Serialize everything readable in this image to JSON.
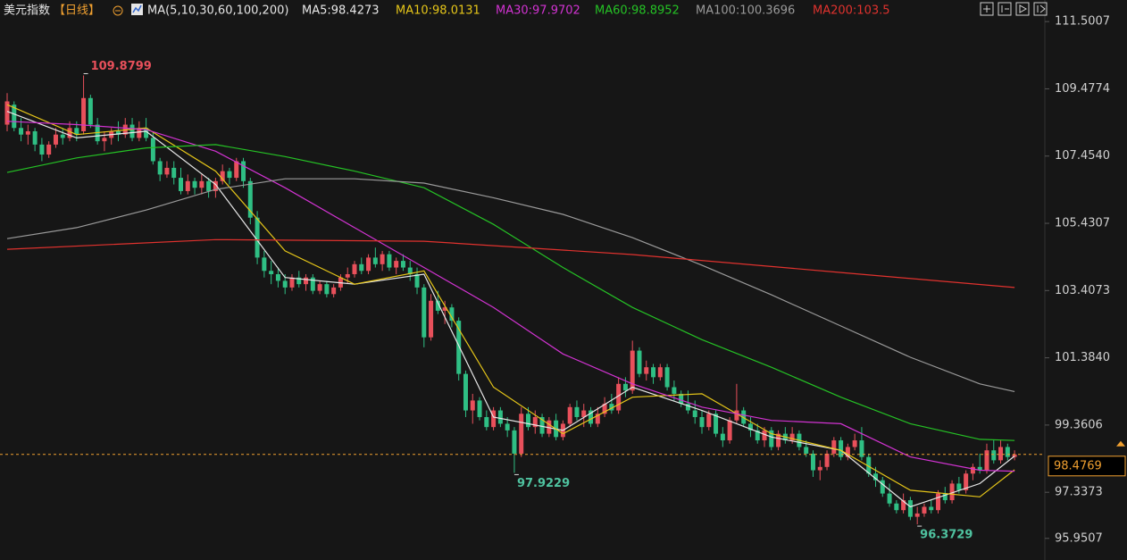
{
  "chart_data": {
    "type": "candlestick",
    "title": "美元指数",
    "period": "【日线】",
    "indicator": "MA(5,10,30,60,100,200)",
    "up_color": "#e8505b",
    "down_color": "#2fbf84",
    "ylim": [
      95.3,
      112.15
    ],
    "yticks": [
      111.5007,
      109.4774,
      {
        "value": 107.454,
        "label": "107.4540"
      },
      105.4307,
      103.4073,
      {
        "value": 101.384,
        "label": "101.3840"
      },
      99.3606,
      97.3373,
      95.9507
    ],
    "current_price": 98.4769,
    "current_price_color": "#f0a030",
    "candles": [
      [
        108.4,
        109.35,
        108.2,
        109.1
      ],
      [
        109.0,
        109.1,
        108.2,
        108.3
      ],
      [
        108.3,
        108.6,
        107.9,
        108.1
      ],
      [
        108.1,
        108.4,
        107.8,
        108.2
      ],
      [
        108.2,
        108.3,
        107.6,
        107.8
      ],
      [
        107.8,
        108.0,
        107.3,
        107.5
      ],
      [
        107.5,
        107.9,
        107.4,
        107.8
      ],
      [
        107.8,
        108.3,
        107.7,
        108.1
      ],
      [
        108.1,
        108.3,
        107.8,
        108.0
      ],
      [
        108.0,
        108.5,
        107.9,
        108.3
      ],
      [
        108.3,
        108.5,
        107.9,
        108.1
      ],
      [
        108.2,
        109.8799,
        108.1,
        109.2
      ],
      [
        109.2,
        109.3,
        108.3,
        108.4
      ],
      [
        108.4,
        108.6,
        107.8,
        107.9
      ],
      [
        107.9,
        108.2,
        107.6,
        108.0
      ],
      [
        108.0,
        108.3,
        107.8,
        108.2
      ],
      [
        108.2,
        108.5,
        107.9,
        108.1
      ],
      [
        108.1,
        108.6,
        108.0,
        108.4
      ],
      [
        108.4,
        108.6,
        107.9,
        108.0
      ],
      [
        108.0,
        108.5,
        107.9,
        108.3
      ],
      [
        108.3,
        108.6,
        107.9,
        108.0
      ],
      [
        108.0,
        108.2,
        107.2,
        107.3
      ],
      [
        107.3,
        107.4,
        106.7,
        106.9
      ],
      [
        106.9,
        107.3,
        106.8,
        107.1
      ],
      [
        107.1,
        107.3,
        106.6,
        106.8
      ],
      [
        106.8,
        107.1,
        106.3,
        106.4
      ],
      [
        106.4,
        106.9,
        106.3,
        106.7
      ],
      [
        106.7,
        106.8,
        106.3,
        106.5
      ],
      [
        106.5,
        106.9,
        106.3,
        106.7
      ],
      [
        106.7,
        106.8,
        106.2,
        106.4
      ],
      [
        106.4,
        106.8,
        106.2,
        106.7
      ],
      [
        106.7,
        107.2,
        106.6,
        107.0
      ],
      [
        107.0,
        107.1,
        106.6,
        106.8
      ],
      [
        106.8,
        107.4,
        106.7,
        107.3
      ],
      [
        107.3,
        107.4,
        106.5,
        106.7
      ],
      [
        106.7,
        106.8,
        105.4,
        105.6
      ],
      [
        105.6,
        105.8,
        104.2,
        104.4
      ],
      [
        104.4,
        104.6,
        103.8,
        104.0
      ],
      [
        104.0,
        104.3,
        103.6,
        103.9
      ],
      [
        103.9,
        104.1,
        103.5,
        103.7
      ],
      [
        103.7,
        103.9,
        103.3,
        103.5
      ],
      [
        103.5,
        103.9,
        103.4,
        103.8
      ],
      [
        103.8,
        104.0,
        103.5,
        103.6
      ],
      [
        103.6,
        103.9,
        103.4,
        103.8
      ],
      [
        103.8,
        103.9,
        103.3,
        103.4
      ],
      [
        103.4,
        103.7,
        103.3,
        103.6
      ],
      [
        103.6,
        103.7,
        103.2,
        103.3
      ],
      [
        103.3,
        103.6,
        103.2,
        103.5
      ],
      [
        103.5,
        103.9,
        103.4,
        103.8
      ],
      [
        103.8,
        104.1,
        103.6,
        103.9
      ],
      [
        103.9,
        104.3,
        103.8,
        104.2
      ],
      [
        104.2,
        104.4,
        103.9,
        104.0
      ],
      [
        104.0,
        104.5,
        103.9,
        104.4
      ],
      [
        104.4,
        104.7,
        104.1,
        104.2
      ],
      [
        104.2,
        104.6,
        104.0,
        104.5
      ],
      [
        104.5,
        104.6,
        104.0,
        104.1
      ],
      [
        104.1,
        104.4,
        103.9,
        104.3
      ],
      [
        104.3,
        104.5,
        104.0,
        104.1
      ],
      [
        104.1,
        104.3,
        103.7,
        103.9
      ],
      [
        103.9,
        104.1,
        103.3,
        103.5
      ],
      [
        103.5,
        103.6,
        101.7,
        102.0
      ],
      [
        102.0,
        103.3,
        101.9,
        103.1
      ],
      [
        103.1,
        103.4,
        102.7,
        102.8
      ],
      [
        102.8,
        103.1,
        102.4,
        102.9
      ],
      [
        102.9,
        103.0,
        102.3,
        102.5
      ],
      [
        102.5,
        102.6,
        100.7,
        100.9
      ],
      [
        100.9,
        101.0,
        99.6,
        99.8
      ],
      [
        99.8,
        100.3,
        99.4,
        100.1
      ],
      [
        100.1,
        100.2,
        99.5,
        99.6
      ],
      [
        99.6,
        99.8,
        99.2,
        99.3
      ],
      [
        99.3,
        99.9,
        99.2,
        99.8
      ],
      [
        99.8,
        99.9,
        99.3,
        99.4
      ],
      [
        99.4,
        99.6,
        99.0,
        99.2
      ],
      [
        99.2,
        99.3,
        97.9229,
        98.5
      ],
      [
        98.5,
        99.9,
        98.4,
        99.7
      ],
      [
        99.7,
        99.9,
        99.2,
        99.3
      ],
      [
        99.3,
        99.8,
        99.1,
        99.6
      ],
      [
        99.6,
        99.7,
        99.0,
        99.1
      ],
      [
        99.1,
        99.6,
        99.0,
        99.5
      ],
      [
        99.5,
        99.7,
        98.9,
        99.0
      ],
      [
        99.0,
        99.5,
        98.9,
        99.4
      ],
      [
        99.4,
        100.0,
        99.3,
        99.9
      ],
      [
        99.9,
        100.1,
        99.5,
        99.6
      ],
      [
        99.6,
        100.0,
        99.3,
        99.8
      ],
      [
        99.8,
        99.9,
        99.3,
        99.4
      ],
      [
        99.4,
        99.9,
        99.3,
        99.7
      ],
      [
        99.7,
        100.2,
        99.6,
        100.0
      ],
      [
        100.0,
        100.3,
        99.7,
        99.8
      ],
      [
        99.8,
        100.8,
        99.7,
        100.6
      ],
      [
        100.6,
        100.8,
        100.2,
        100.4
      ],
      [
        100.4,
        101.9,
        100.3,
        101.6
      ],
      [
        101.6,
        101.7,
        100.8,
        100.9
      ],
      [
        100.9,
        101.3,
        100.7,
        101.1
      ],
      [
        101.1,
        101.2,
        100.6,
        100.8
      ],
      [
        100.8,
        101.2,
        100.7,
        101.1
      ],
      [
        101.1,
        101.2,
        100.4,
        100.5
      ],
      [
        100.5,
        100.7,
        100.1,
        100.3
      ],
      [
        100.3,
        100.4,
        99.9,
        100.0
      ],
      [
        100.0,
        100.4,
        99.7,
        99.8
      ],
      [
        99.8,
        100.1,
        99.4,
        99.6
      ],
      [
        99.6,
        99.8,
        99.1,
        99.3
      ],
      [
        99.3,
        99.8,
        99.2,
        99.7
      ],
      [
        99.7,
        99.8,
        99.0,
        99.1
      ],
      [
        99.1,
        99.3,
        98.7,
        98.9
      ],
      [
        98.9,
        99.6,
        98.8,
        99.5
      ],
      [
        99.5,
        100.6,
        99.4,
        99.8
      ],
      [
        99.8,
        99.9,
        99.3,
        99.4
      ],
      [
        99.4,
        99.6,
        99.0,
        99.2
      ],
      [
        99.2,
        99.4,
        98.8,
        98.9
      ],
      [
        98.9,
        99.3,
        98.7,
        99.2
      ],
      [
        99.2,
        99.3,
        98.6,
        98.7
      ],
      [
        98.7,
        99.2,
        98.6,
        99.1
      ],
      [
        99.1,
        99.3,
        98.8,
        98.9
      ],
      [
        98.9,
        99.3,
        98.8,
        99.1
      ],
      [
        99.1,
        99.2,
        98.6,
        98.7
      ],
      [
        98.7,
        98.9,
        98.4,
        98.5
      ],
      [
        98.5,
        98.6,
        97.8,
        98.0
      ],
      [
        98.0,
        98.3,
        97.7,
        98.1
      ],
      [
        98.1,
        98.6,
        98.0,
        98.5
      ],
      [
        98.5,
        99.0,
        98.4,
        98.9
      ],
      [
        98.9,
        99.0,
        98.3,
        98.4
      ],
      [
        98.4,
        98.8,
        98.3,
        98.7
      ],
      [
        98.7,
        99.1,
        98.6,
        98.9
      ],
      [
        98.9,
        99.3,
        98.3,
        98.4
      ],
      [
        98.4,
        98.5,
        97.8,
        97.9
      ],
      [
        97.9,
        98.1,
        97.5,
        97.7
      ],
      [
        97.7,
        97.8,
        97.2,
        97.3
      ],
      [
        97.3,
        97.6,
        96.9,
        97.0
      ],
      [
        97.0,
        97.1,
        96.7,
        96.8
      ],
      [
        96.8,
        97.3,
        96.7,
        97.1
      ],
      [
        97.1,
        97.2,
        96.5,
        96.6
      ],
      [
        96.6,
        96.9,
        96.3729,
        96.7
      ],
      [
        96.7,
        97.0,
        96.6,
        96.9
      ],
      [
        96.9,
        97.1,
        96.7,
        96.8
      ],
      [
        96.8,
        97.4,
        96.7,
        97.3
      ],
      [
        97.3,
        97.5,
        97.0,
        97.1
      ],
      [
        97.1,
        97.7,
        97.0,
        97.6
      ],
      [
        97.6,
        97.8,
        97.3,
        97.4
      ],
      [
        97.4,
        98.0,
        97.3,
        97.9
      ],
      [
        97.9,
        98.2,
        97.7,
        98.1
      ],
      [
        98.1,
        98.5,
        97.9,
        98.0
      ],
      [
        98.0,
        98.8,
        97.9,
        98.6
      ],
      [
        98.6,
        98.9,
        98.2,
        98.3
      ],
      [
        98.3,
        98.9,
        98.2,
        98.7
      ],
      [
        98.7,
        98.8,
        98.3,
        98.4
      ],
      [
        98.4,
        98.6,
        98.3,
        98.4769
      ]
    ],
    "ma_series": [
      {
        "name": "MA5:98.4273",
        "color": "#e8e8e8",
        "x": [
          0,
          10,
          20,
          30,
          40,
          50,
          60,
          70,
          80,
          90,
          100,
          110,
          120,
          130,
          140,
          145
        ],
        "values": [
          108.8,
          108.0,
          108.2,
          106.6,
          103.8,
          103.6,
          103.9,
          99.6,
          99.2,
          100.5,
          99.8,
          99.0,
          98.6,
          96.9,
          97.6,
          98.4273
        ]
      },
      {
        "name": "MA10:98.0131",
        "color": "#e6c619",
        "x": [
          0,
          10,
          20,
          30,
          40,
          50,
          60,
          70,
          80,
          90,
          100,
          110,
          120,
          130,
          140,
          145
        ],
        "values": [
          109.0,
          108.1,
          108.3,
          107.0,
          104.6,
          103.6,
          104.0,
          100.5,
          99.1,
          100.2,
          100.3,
          99.1,
          98.6,
          97.4,
          97.2,
          98.0131
        ]
      },
      {
        "name": "MA30:97.9702",
        "color": "#d233d2",
        "x": [
          0,
          10,
          20,
          30,
          40,
          50,
          60,
          70,
          80,
          90,
          100,
          110,
          120,
          130,
          140,
          145
        ],
        "values": [
          108.5,
          108.4,
          108.25,
          107.6,
          106.5,
          105.3,
          104.1,
          102.9,
          101.5,
          100.6,
          99.9,
          99.5,
          99.4,
          98.4,
          98.0,
          97.9702
        ]
      },
      {
        "name": "MA60:98.8952",
        "color": "#25c225",
        "x": [
          0,
          10,
          20,
          30,
          40,
          50,
          60,
          70,
          80,
          90,
          100,
          110,
          120,
          130,
          140,
          145
        ],
        "values": [
          106.96,
          107.4,
          107.7,
          107.8,
          107.44,
          107.0,
          106.5,
          105.4,
          104.1,
          102.9,
          101.93,
          101.1,
          100.2,
          99.4,
          98.93,
          98.8952
        ]
      },
      {
        "name": "MA100:100.3696",
        "color": "#9a9a9a",
        "x": [
          0,
          10,
          20,
          30,
          40,
          50,
          60,
          70,
          80,
          90,
          100,
          110,
          120,
          130,
          140,
          145
        ],
        "values": [
          104.97,
          105.3,
          105.83,
          106.45,
          106.77,
          106.77,
          106.64,
          106.2,
          105.7,
          105.0,
          104.17,
          103.28,
          102.34,
          101.4,
          100.6,
          100.3696
        ]
      },
      {
        "name": "MA200:103.5",
        "color": "#e0322e",
        "x": [
          0,
          30,
          60,
          90,
          120,
          145
        ],
        "values": [
          104.65,
          104.94,
          104.89,
          104.49,
          103.95,
          103.5
        ]
      }
    ]
  }
}
